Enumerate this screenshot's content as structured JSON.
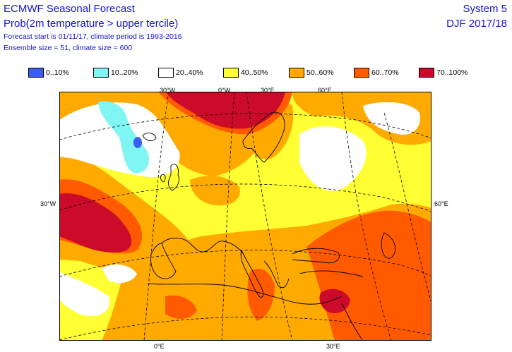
{
  "header": {
    "title": "ECMWF Seasonal Forecast",
    "subtitle": "Prob(2m temperature > upper tercile)",
    "line3": "Forecast start is 01/11/17, climate period is 1993-2016",
    "line4": "Ensemble size = 51, climate size = 600",
    "system": "System 5",
    "season": "DJF 2017/18"
  },
  "legend": [
    {
      "label": "0..10%",
      "color": "#3a5ff0"
    },
    {
      "label": "10..20%",
      "color": "#80f6f4"
    },
    {
      "label": "20..40%",
      "color": "#ffffff"
    },
    {
      "label": "40..50%",
      "color": "#ffff33"
    },
    {
      "label": "50..60%",
      "color": "#ffaa00"
    },
    {
      "label": "60..70%",
      "color": "#ff5a00"
    },
    {
      "label": "70..100%",
      "color": "#cc0a2a"
    }
  ],
  "axis_labels": {
    "top_30w": "30°W",
    "top_0": "0°W",
    "top_30e": "30°E",
    "top_60e": "60°E",
    "left_30w": "30°W",
    "right_60e": "60°E",
    "bottom_0": "0°E",
    "bottom_30e": "30°E"
  }
}
